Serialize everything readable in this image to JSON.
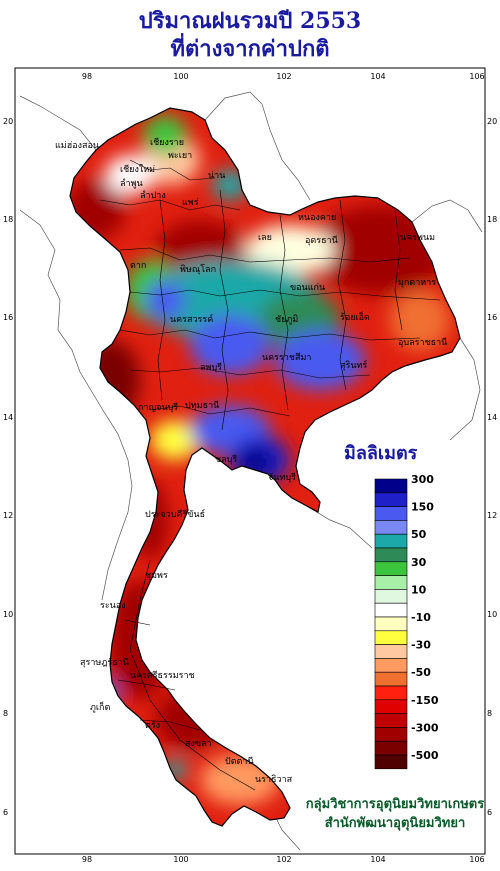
{
  "title_line1": "ปริมาณฝนรวมปี  2553",
  "title_line2": "ที่ต่างจากค่าปกติ",
  "axes": {
    "lon_ticks": [
      "98",
      "100",
      "102",
      "104",
      "106"
    ],
    "lat_ticks": [
      "20",
      "18",
      "16",
      "14",
      "12",
      "10",
      "8",
      "6"
    ]
  },
  "legend": {
    "title": "มิลลิเมตร",
    "entries": [
      {
        "label": "300",
        "color": "#00008b"
      },
      {
        "label": "",
        "color": "#2020c8"
      },
      {
        "label": "150",
        "color": "#4a5af0"
      },
      {
        "label": "",
        "color": "#7a88f4"
      },
      {
        "label": "50",
        "color": "#1ca8a8"
      },
      {
        "label": "",
        "color": "#2e8b57"
      },
      {
        "label": "30",
        "color": "#3cc43c"
      },
      {
        "label": "",
        "color": "#a8f0a8"
      },
      {
        "label": "10",
        "color": "#e0f8e0"
      },
      {
        "label": "",
        "color": "#ffffff"
      },
      {
        "label": "-10",
        "color": "#ffffc0"
      },
      {
        "label": "",
        "color": "#ffff40"
      },
      {
        "label": "-30",
        "color": "#ffc8a0"
      },
      {
        "label": "",
        "color": "#ff9a60"
      },
      {
        "label": "-50",
        "color": "#f07030"
      },
      {
        "label": "",
        "color": "#ff2010"
      },
      {
        "label": "-150",
        "color": "#e00000"
      },
      {
        "label": "",
        "color": "#c00000"
      },
      {
        "label": "-300",
        "color": "#a00000"
      },
      {
        "label": "",
        "color": "#7a0000"
      },
      {
        "label": "-500",
        "color": "#500000"
      }
    ]
  },
  "provinces": [
    "เชียงราย",
    "แม่ฮ่องสอน",
    "เชียงใหม่",
    "ลำพูน",
    "ลำปาง",
    "พะเยา",
    "น่าน",
    "แพร่",
    "หนองคาย",
    "อุดรธานี",
    "นครพนม",
    "มุกดาหาร",
    "เลย",
    "ขอนแก่น",
    "ตาก",
    "พิษณุโลก",
    "นครสวรรค์",
    "ชัยภูมิ",
    "ร้อยเอ็ด",
    "อุบลราชธานี",
    "นครราชสีมา",
    "สุรินทร์",
    "ลพบุรี",
    "กาญจนบุรี",
    "ปทุมธานี",
    "ชลบุรี",
    "จันทบุรี",
    "ประจวบคีรีขันธ์",
    "ชุมพร",
    "ระนอง",
    "สุราษฎร์ธานี",
    "นครศรีธรรมราช",
    "ภูเก็ต",
    "ตรัง",
    "สงขลา",
    "ปัตตานี",
    "นราธิวาส"
  ],
  "credit_line1": "กลุ่มวิชาการอุตุนิยมวิทยาเกษตร",
  "credit_line2": "สำนักพัฒนาอุตุนิยมวิทยา",
  "colors": {
    "heavy_deficit": "#a00000",
    "deficit": "#e02010",
    "surplus": "#4a5af0",
    "strong_surplus": "#00008b",
    "title_blue": "#1a1aa0"
  }
}
